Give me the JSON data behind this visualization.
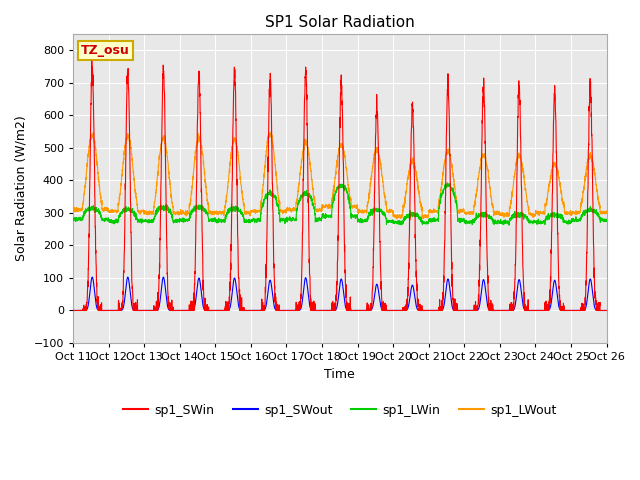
{
  "title": "SP1 Solar Radiation",
  "ylabel": "Solar Radiation (W/m2)",
  "xlabel": "Time",
  "ylim": [
    -100,
    850
  ],
  "xlim": [
    0,
    3600
  ],
  "annotation_text": "TZ_osu",
  "annotation_color": "#cc0000",
  "annotation_bg": "#ffffcc",
  "annotation_border": "#ccaa00",
  "plot_bg": "#e8e8e8",
  "grid_color": "white",
  "xtick_labels": [
    "Oct 11",
    "Oct 12",
    "Oct 13",
    "Oct 14",
    "Oct 15",
    "Oct 16",
    "Oct 17",
    "Oct 18",
    "Oct 19",
    "Oct 20",
    "Oct 21",
    "Oct 22",
    "Oct 23",
    "Oct 24",
    "Oct 25",
    "Oct 26"
  ],
  "xtick_positions": [
    0,
    240,
    480,
    720,
    960,
    1200,
    1440,
    1680,
    1920,
    2160,
    2400,
    2640,
    2880,
    3120,
    3360,
    3600
  ],
  "legend_labels": [
    "sp1_SWin",
    "sp1_SWout",
    "sp1_LWin",
    "sp1_LWout"
  ],
  "legend_colors": [
    "#ff0000",
    "#0000ff",
    "#00cc00",
    "#ff9900"
  ],
  "series_linewidth": 0.8,
  "title_fontsize": 11,
  "days": 15,
  "pts_per_day": 240,
  "SWin_peaks": [
    740,
    735,
    740,
    730,
    730,
    710,
    730,
    705,
    630,
    625,
    695,
    690,
    685,
    665,
    690
  ],
  "SWout_peaks": [
    108,
    108,
    108,
    105,
    105,
    98,
    106,
    102,
    85,
    82,
    102,
    100,
    100,
    98,
    102
  ],
  "LWin_base": [
    280,
    275,
    275,
    278,
    275,
    278,
    280,
    290,
    275,
    270,
    278,
    272,
    272,
    272,
    278
  ],
  "LWin_day": [
    315,
    310,
    318,
    318,
    315,
    360,
    360,
    385,
    310,
    295,
    385,
    295,
    295,
    295,
    308
  ],
  "LWout_night": [
    330,
    325,
    320,
    320,
    320,
    325,
    330,
    340,
    325,
    310,
    325,
    320,
    315,
    320,
    320
  ],
  "LWout_peaks": [
    540,
    535,
    530,
    530,
    525,
    545,
    515,
    510,
    495,
    460,
    490,
    480,
    475,
    450,
    475
  ]
}
